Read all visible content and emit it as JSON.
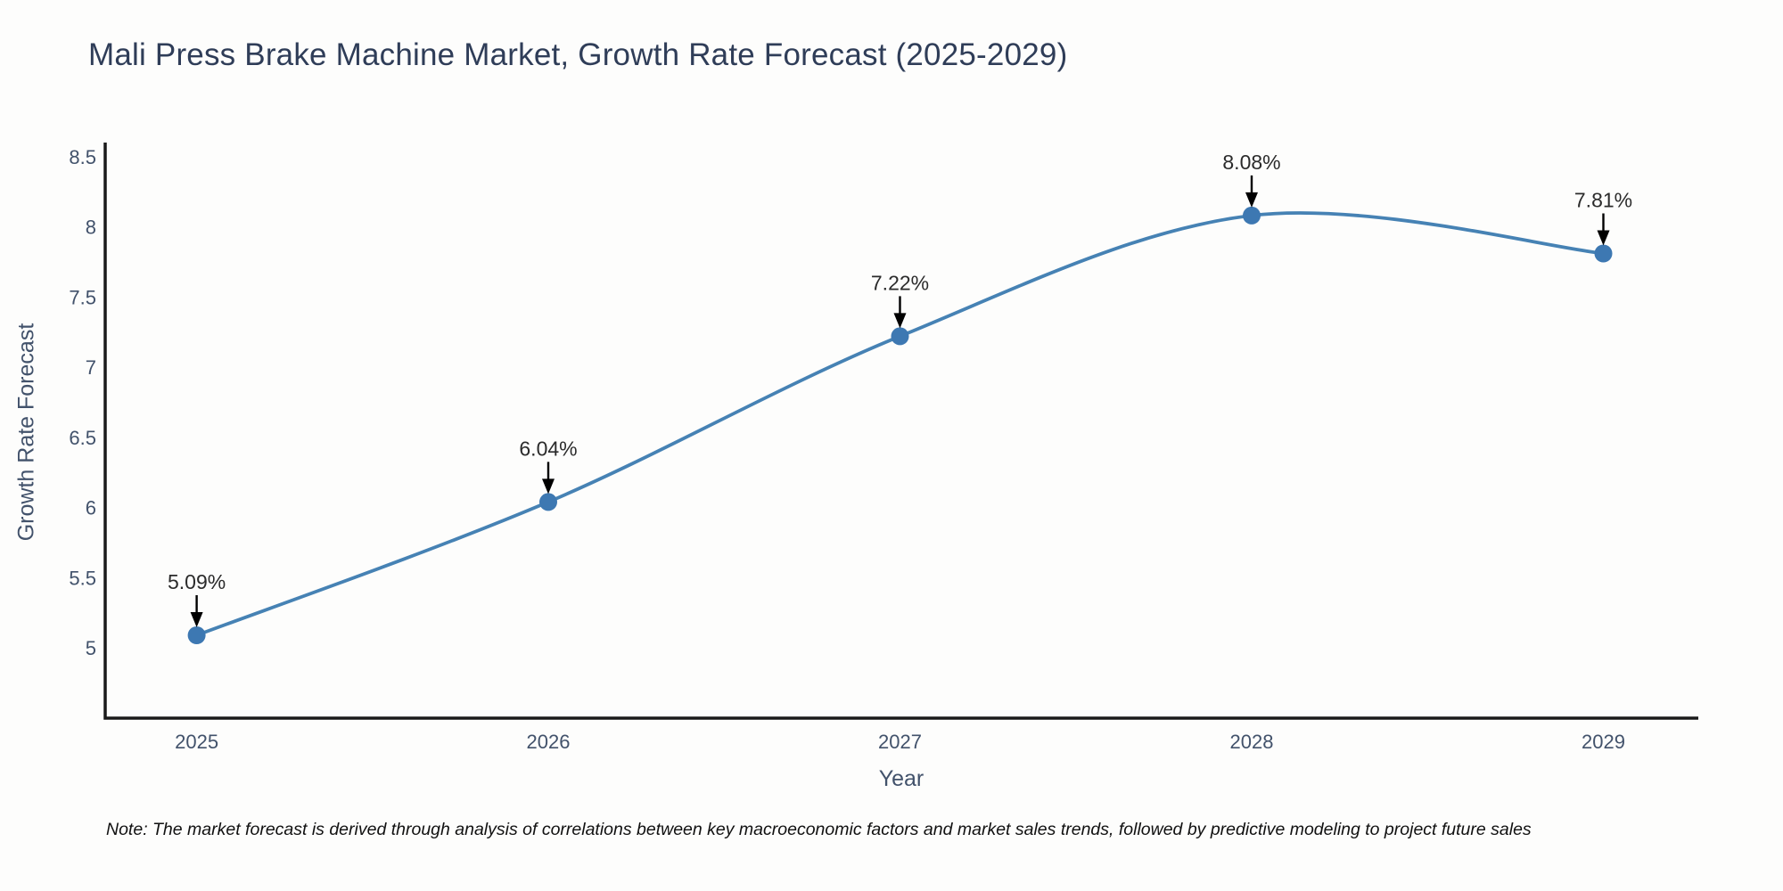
{
  "footnote": "Note: The market forecast is derived through analysis of correlations between key macroeconomic factors and market sales trends, followed by predictive modeling to project future sales",
  "chart_data": {
    "type": "line",
    "title": "Mali Press Brake Machine Market, Growth Rate Forecast (2025-2029)",
    "x": [
      2025,
      2026,
      2027,
      2028,
      2029
    ],
    "categories": [
      "2025",
      "2026",
      "2027",
      "2028",
      "2029"
    ],
    "values": [
      5.09,
      6.04,
      7.22,
      8.08,
      7.81
    ],
    "point_labels": [
      "5.09%",
      "6.04%",
      "7.22%",
      "8.08%",
      "7.81%"
    ],
    "xlabel": "Year",
    "ylabel": "Growth Rate Forecast",
    "xlim": [
      2024.74,
      2029.27
    ],
    "ylim": [
      4.5,
      8.6
    ],
    "yticks": [
      "5",
      "5.5",
      "6",
      "6.5",
      "7",
      "7.5",
      "8",
      "8.5"
    ],
    "grid": false,
    "legend": false,
    "line_shape": "spline",
    "colors": {
      "line": "#4682b4",
      "marker": "#3d78b2",
      "axis": "#1a1a1a",
      "annotation": "#000000",
      "tick_text": "#42526b",
      "title_text": "#2f3d58",
      "background": "#fdfdfc"
    }
  }
}
